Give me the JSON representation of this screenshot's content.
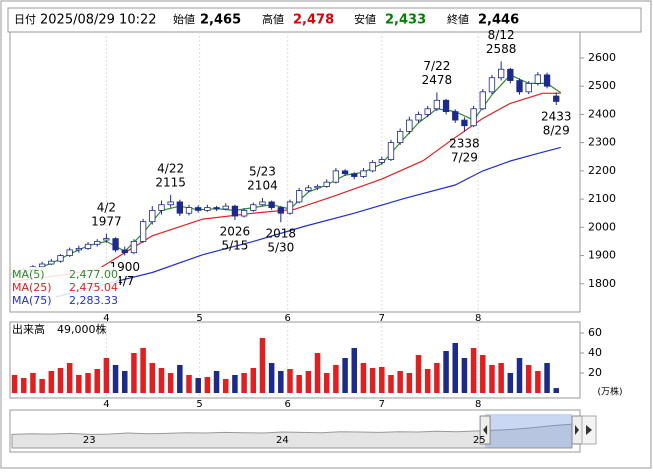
{
  "chart_data": {
    "type": "candlestick",
    "header": {
      "date_label": "日付",
      "datetime": "2025/08/29 10:22",
      "items": [
        {
          "name": "始値",
          "value": 2465,
          "label": "2,465",
          "color": "#000000"
        },
        {
          "name": "高値",
          "value": 2478,
          "label": "2,478",
          "color": "#e00000"
        },
        {
          "name": "安値",
          "value": 2433,
          "label": "2,433",
          "color": "#008000"
        },
        {
          "name": "終値",
          "value": 2446,
          "label": "2,446",
          "color": "#000000"
        }
      ]
    },
    "xlim": [
      -1,
      121
    ],
    "xticks": [
      {
        "value": 20,
        "label": "4"
      },
      {
        "value": 40.3,
        "label": "5"
      },
      {
        "value": 59.5,
        "label": "6"
      },
      {
        "value": 80,
        "label": "7"
      },
      {
        "value": 101,
        "label": "8"
      }
    ],
    "ylim": [
      1700,
      2692
    ],
    "yticks": [
      1800,
      1900,
      2000,
      2100,
      2200,
      2300,
      2400,
      2500,
      2600
    ],
    "up_color": "#ffffff",
    "down_color": "#1c2a8c",
    "x": [
      0,
      2,
      4,
      6,
      8,
      10,
      12,
      14,
      16,
      18,
      20,
      22,
      24,
      26,
      28,
      30,
      32,
      34,
      36,
      38,
      40,
      42,
      44,
      46,
      48,
      50,
      52,
      54,
      56,
      58,
      60,
      62,
      64,
      66,
      68,
      70,
      72,
      74,
      76,
      78,
      80,
      82,
      84,
      86,
      88,
      90,
      92,
      94,
      96,
      98,
      100,
      102,
      104,
      106,
      108,
      110,
      112,
      114,
      116,
      118
    ],
    "open": [
      1830,
      1840,
      1850,
      1860,
      1870,
      1880,
      1900,
      1920,
      1925,
      1940,
      1955,
      1960,
      1920,
      1910,
      1950,
      2020,
      2060,
      2080,
      2090,
      2050,
      2070,
      2060,
      2070,
      2065,
      2075,
      2040,
      2060,
      2080,
      2090,
      2070,
      2050,
      2090,
      2130,
      2140,
      2145,
      2160,
      2200,
      2190,
      2180,
      2200,
      2230,
      2240,
      2300,
      2340,
      2380,
      2400,
      2420,
      2450,
      2410,
      2380,
      2360,
      2420,
      2480,
      2530,
      2560,
      2520,
      2480,
      2510,
      2540,
      2465
    ],
    "high": [
      1848,
      1858,
      1866,
      1878,
      1888,
      1905,
      1928,
      1935,
      1948,
      1958,
      1977,
      1965,
      1932,
      1958,
      2030,
      2075,
      2095,
      2115,
      2098,
      2080,
      2078,
      2080,
      2076,
      2085,
      2080,
      2068,
      2088,
      2104,
      2095,
      2075,
      2098,
      2140,
      2150,
      2152,
      2170,
      2210,
      2206,
      2195,
      2210,
      2238,
      2250,
      2310,
      2350,
      2392,
      2410,
      2430,
      2478,
      2455,
      2418,
      2390,
      2430,
      2490,
      2540,
      2588,
      2565,
      2528,
      2518,
      2550,
      2548,
      2478
    ],
    "low": [
      1822,
      1835,
      1845,
      1852,
      1866,
      1875,
      1895,
      1910,
      1920,
      1932,
      1945,
      1912,
      1900,
      1905,
      1945,
      2010,
      2045,
      2070,
      2040,
      2042,
      2052,
      2055,
      2058,
      2060,
      2026,
      2035,
      2055,
      2075,
      2062,
      2018,
      2045,
      2085,
      2125,
      2132,
      2140,
      2155,
      2182,
      2170,
      2175,
      2195,
      2222,
      2235,
      2292,
      2330,
      2370,
      2390,
      2412,
      2400,
      2370,
      2338,
      2355,
      2415,
      2472,
      2520,
      2510,
      2470,
      2472,
      2502,
      2492,
      2433
    ],
    "close": [
      1840,
      1850,
      1860,
      1870,
      1880,
      1900,
      1920,
      1925,
      1940,
      1950,
      1960,
      1920,
      1910,
      1950,
      2020,
      2060,
      2080,
      2090,
      2050,
      2070,
      2060,
      2070,
      2065,
      2075,
      2040,
      2060,
      2080,
      2090,
      2070,
      2050,
      2090,
      2130,
      2140,
      2145,
      2160,
      2200,
      2190,
      2180,
      2200,
      2230,
      2240,
      2300,
      2340,
      2380,
      2400,
      2420,
      2450,
      2410,
      2380,
      2360,
      2420,
      2480,
      2530,
      2560,
      2520,
      2480,
      2510,
      2540,
      2500,
      2446
    ],
    "series": [
      {
        "name": "MA(5)",
        "color": "#2e8b2e",
        "value_label": "2,477.00",
        "x": [
          0,
          4,
          8,
          12,
          16,
          20,
          24,
          28,
          32,
          36,
          40,
          44,
          48,
          52,
          56,
          60,
          64,
          68,
          72,
          76,
          80,
          84,
          88,
          92,
          96,
          100,
          104,
          108,
          112,
          116,
          119
        ],
        "values": [
          1830,
          1850,
          1872,
          1905,
          1935,
          1950,
          1915,
          1980,
          2060,
          2075,
          2062,
          2066,
          2060,
          2070,
          2080,
          2065,
          2125,
          2150,
          2185,
          2195,
          2225,
          2300,
          2370,
          2420,
          2410,
          2380,
          2470,
          2540,
          2510,
          2510,
          2477
        ]
      },
      {
        "name": "MA(25)",
        "color": "#e02020",
        "value_label": "2,475.04",
        "x": [
          0,
          10,
          18,
          30,
          41,
          52,
          61,
          69,
          80,
          89,
          95,
          102,
          108,
          115,
          119
        ],
        "values": [
          1810,
          1830,
          1850,
          1970,
          2029,
          2050,
          2064,
          2107,
          2171,
          2236,
          2307,
          2386,
          2439,
          2475,
          2475.04
        ]
      },
      {
        "name": "MA(75)",
        "color": "#2030d0",
        "value_label": "2,283.33",
        "x": [
          9,
          20,
          30,
          41,
          52,
          63,
          74,
          85,
          96,
          102,
          108,
          114,
          119
        ],
        "values": [
          1753,
          1800,
          1840,
          1903,
          1950,
          2003,
          2050,
          2103,
          2150,
          2200,
          2235,
          2262,
          2283.33
        ]
      }
    ],
    "annotations": [
      {
        "date": "4/2",
        "price": 1977,
        "x": 20,
        "place": "above"
      },
      {
        "date": "4/7",
        "price": 1900,
        "x": 24,
        "place": "below"
      },
      {
        "date": "4/22",
        "price": 2115,
        "x": 34,
        "place": "above"
      },
      {
        "date": "5/15",
        "price": 2026,
        "x": 48,
        "place": "below"
      },
      {
        "date": "5/23",
        "price": 2104,
        "x": 54,
        "place": "above"
      },
      {
        "date": "5/30",
        "price": 2018,
        "x": 58,
        "place": "below"
      },
      {
        "date": "7/22",
        "price": 2478,
        "x": 92,
        "place": "above"
      },
      {
        "date": "7/29",
        "price": 2338,
        "x": 98,
        "place": "below"
      },
      {
        "date": "8/12",
        "price": 2588,
        "x": 106,
        "place": "above"
      },
      {
        "date": "8/29",
        "price": 2433,
        "x": 118,
        "place": "below"
      }
    ],
    "volume": {
      "title": "出来高",
      "last_label": "49,000株",
      "unit": "(万株)",
      "up_color": "#e02020",
      "down_color": "#1c2a8c",
      "ylim": [
        0,
        71
      ],
      "yticks": [
        20,
        40,
        60
      ],
      "values": [
        18,
        15,
        20,
        14,
        22,
        25,
        30,
        18,
        20,
        24,
        35,
        28,
        22,
        40,
        45,
        30,
        25,
        20,
        28,
        18,
        15,
        16,
        22,
        14,
        18,
        20,
        25,
        55,
        30,
        22,
        24,
        18,
        22,
        40,
        20,
        28,
        35,
        45,
        30,
        25,
        26,
        18,
        22,
        20,
        38,
        24,
        30,
        42,
        50,
        35,
        45,
        38,
        28,
        30,
        20,
        35,
        28,
        22,
        30,
        4.9
      ]
    },
    "navigator": {
      "ylim": [
        0,
        100
      ],
      "window": [
        24.5,
        29.5
      ],
      "xticks": [
        {
          "value": 4,
          "label": "23"
        },
        {
          "value": 14,
          "label": "24"
        },
        {
          "value": 24.2,
          "label": "25"
        }
      ],
      "values": [
        40,
        42,
        41,
        43,
        40,
        41,
        44,
        42,
        43,
        45,
        44,
        46,
        45,
        44,
        47,
        46,
        45,
        48,
        47,
        46,
        48,
        47,
        49,
        48,
        50,
        52,
        55,
        60,
        66,
        70
      ]
    }
  }
}
